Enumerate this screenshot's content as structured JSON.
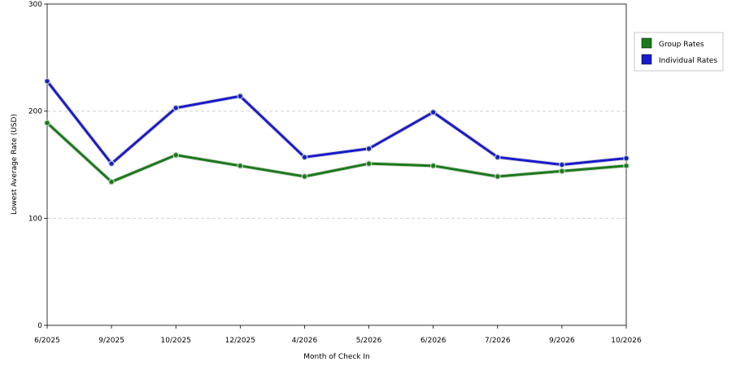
{
  "chart_data": {
    "type": "line",
    "categories": [
      "6/2025",
      "9/2025",
      "10/2025",
      "12/2025",
      "4/2026",
      "5/2026",
      "6/2026",
      "7/2026",
      "9/2026",
      "10/2026"
    ],
    "series": [
      {
        "name": "Group Rates",
        "values": [
          189,
          134,
          159,
          149,
          139,
          151,
          149,
          139,
          144,
          149
        ],
        "color": "#1a7a1a"
      },
      {
        "name": "Individual Rates",
        "values": [
          228,
          151,
          203,
          214,
          157,
          165,
          199,
          157,
          150,
          156
        ],
        "color": "#1a1acc"
      }
    ],
    "xlabel": "Month of Check In",
    "ylabel": "Lowest Average Rate (USD)",
    "ylim": [
      0,
      300
    ],
    "yticks": [
      0,
      100,
      200,
      300
    ],
    "grid": true,
    "legend_position": "right"
  }
}
